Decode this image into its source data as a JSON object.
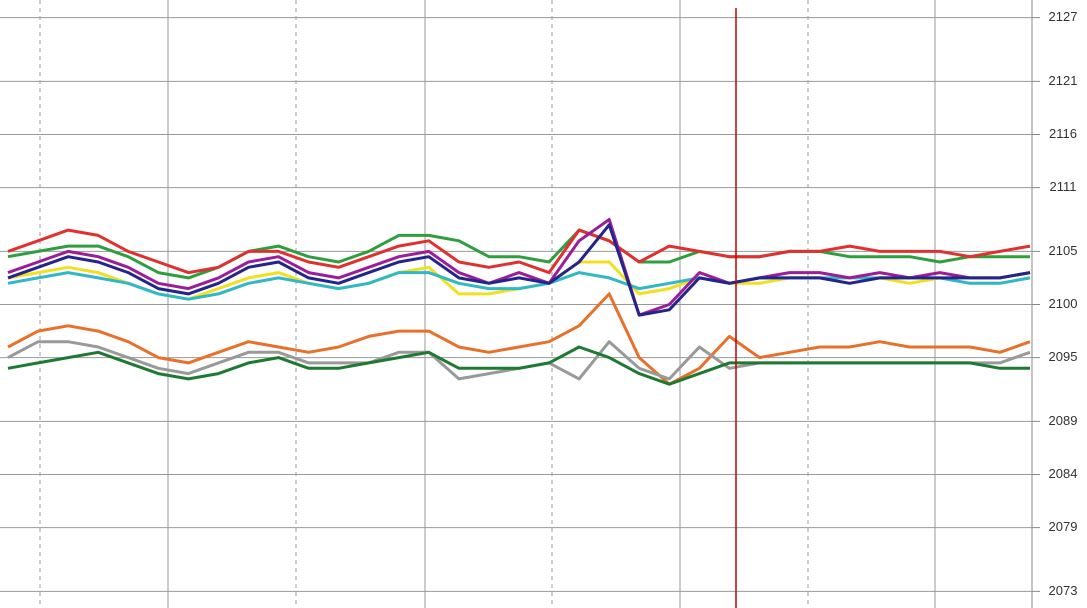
{
  "chart_data": {
    "type": "line",
    "ylim": [
      2072,
      2128
    ],
    "yticks": [
      2073,
      2079,
      2084,
      2089,
      2095,
      2100,
      2105,
      2111,
      2116,
      2121,
      2127
    ],
    "grid": true,
    "series": [
      {
        "color": "#2e9e3e",
        "values": [
          2104.5,
          2105,
          2105.5,
          2105.5,
          2104.5,
          2103,
          2102.5,
          2103.5,
          2105,
          2105.5,
          2104.5,
          2104,
          2105,
          2106.5,
          2106.5,
          2106,
          2104.5,
          2104.5,
          2104,
          2107,
          2106,
          2104,
          2104,
          2105,
          2104.5,
          2104.5,
          2105,
          2105,
          2104.5,
          2104.5,
          2104.5,
          2104,
          2104.5,
          2104.5,
          2104.5
        ]
      },
      {
        "color": "#e03030",
        "values": [
          2105,
          2106,
          2107,
          2106.5,
          2105,
          2104,
          2103,
          2103.5,
          2105,
          2105,
          2104,
          2103.5,
          2104.5,
          2105.5,
          2106,
          2104,
          2103.5,
          2104,
          2103,
          2107,
          2106,
          2104,
          2105.5,
          2105,
          2104.5,
          2104.5,
          2105,
          2105,
          2105.5,
          2105,
          2105,
          2105,
          2104.5,
          2105,
          2105.5
        ]
      },
      {
        "color": "#f0e020",
        "values": [
          2102.5,
          2103,
          2103.5,
          2103,
          2102,
          2101,
          2100.5,
          2101.5,
          2102.5,
          2103,
          2102,
          2101.5,
          2102,
          2103,
          2103.5,
          2101,
          2101,
          2101.5,
          2102,
          2104,
          2104,
          2101,
          2101.5,
          2102.5,
          2102,
          2102,
          2102.5,
          2102.5,
          2102,
          2102.5,
          2102,
          2102.5,
          2102,
          2102,
          2102.5
        ]
      },
      {
        "color": "#30b8c8",
        "values": [
          2102,
          2102.5,
          2103,
          2102.5,
          2102,
          2101,
          2100.5,
          2101,
          2102,
          2102.5,
          2102,
          2101.5,
          2102,
          2103,
          2103,
          2102,
          2101.5,
          2101.5,
          2102,
          2103,
          2102.5,
          2101.5,
          2102,
          2102.5,
          2102,
          2102.5,
          2102.5,
          2102.5,
          2102.5,
          2102.5,
          2102.5,
          2102.5,
          2102,
          2102,
          2102.5
        ]
      },
      {
        "color": "#9a1e9a",
        "values": [
          2103,
          2104,
          2105,
          2104.5,
          2103.5,
          2102,
          2101.5,
          2102.5,
          2104,
          2104.5,
          2103,
          2102.5,
          2103.5,
          2104.5,
          2105,
          2103,
          2102,
          2103,
          2102,
          2106,
          2108,
          2099,
          2100,
          2103,
          2102,
          2102.5,
          2103,
          2103,
          2102.5,
          2103,
          2102.5,
          2103,
          2102.5,
          2102.5,
          2103
        ]
      },
      {
        "color": "#24248a",
        "values": [
          2102.5,
          2103.5,
          2104.5,
          2104,
          2103,
          2101.5,
          2101,
          2102,
          2103.5,
          2104,
          2102.5,
          2102,
          2103,
          2104,
          2104.5,
          2102.5,
          2102,
          2102.5,
          2102,
          2104,
          2107.5,
          2099,
          2099.5,
          2102.5,
          2102,
          2102.5,
          2102.5,
          2102.5,
          2102,
          2102.5,
          2102.5,
          2102.5,
          2102.5,
          2102.5,
          2103
        ]
      },
      {
        "color": "#e8702a",
        "values": [
          2096,
          2097.5,
          2098,
          2097.5,
          2096.5,
          2095,
          2094.5,
          2095.5,
          2096.5,
          2096,
          2095.5,
          2096,
          2097,
          2097.5,
          2097.5,
          2096,
          2095.5,
          2096,
          2096.5,
          2098,
          2101,
          2095,
          2092.5,
          2094,
          2097,
          2095,
          2095.5,
          2096,
          2096,
          2096.5,
          2096,
          2096,
          2096,
          2095.5,
          2096.5
        ]
      },
      {
        "color": "#999999",
        "values": [
          2095,
          2096.5,
          2096.5,
          2096,
          2095,
          2094,
          2093.5,
          2094.5,
          2095.5,
          2095.5,
          2094.5,
          2094.5,
          2094.5,
          2095.5,
          2095.5,
          2093,
          2093.5,
          2094,
          2094.5,
          2093,
          2096.5,
          2094,
          2093,
          2096,
          2094,
          2094.5,
          2094.5,
          2094.5,
          2094.5,
          2094.5,
          2094.5,
          2094.5,
          2094.5,
          2094.5,
          2095.5
        ]
      },
      {
        "color": "#1e7a32",
        "values": [
          2094,
          2094.5,
          2095,
          2095.5,
          2094.5,
          2093.5,
          2093,
          2093.5,
          2094.5,
          2095,
          2094,
          2094,
          2094.5,
          2095,
          2095.5,
          2094,
          2094,
          2094,
          2094.5,
          2096,
          2095,
          2093.5,
          2092.5,
          2093.5,
          2094.5,
          2094.5,
          2094.5,
          2094.5,
          2094.5,
          2094.5,
          2094.5,
          2094.5,
          2094.5,
          2094,
          2094
        ]
      }
    ]
  }
}
